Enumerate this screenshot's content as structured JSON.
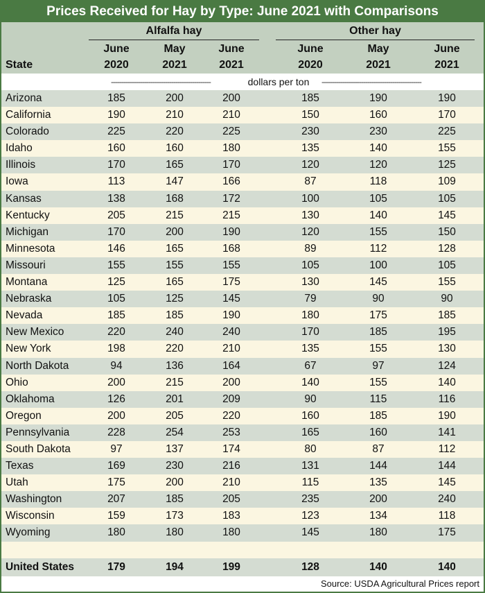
{
  "title": "Prices Received for Hay by Type: June 2021 with Comparisons",
  "groups": {
    "alfalfa": "Alfalfa hay",
    "other": "Other hay"
  },
  "state_header": "State",
  "columns": [
    {
      "top": "June",
      "bottom": "2020"
    },
    {
      "top": "May",
      "bottom": "2021"
    },
    {
      "top": "June",
      "bottom": "2021"
    },
    {
      "top": "June",
      "bottom": "2020"
    },
    {
      "top": "May",
      "bottom": "2021"
    },
    {
      "top": "June",
      "bottom": "2021"
    }
  ],
  "units_dashes_left": "------------------------------------------------",
  "units_label": "dollars per ton",
  "units_dashes_right": "------------------------------------------------",
  "rows": [
    {
      "state": "Arizona",
      "values": [
        "185",
        "200",
        "200",
        "185",
        "190",
        "190"
      ]
    },
    {
      "state": "California",
      "values": [
        "190",
        "210",
        "210",
        "150",
        "160",
        "170"
      ]
    },
    {
      "state": "Colorado",
      "values": [
        "225",
        "220",
        "225",
        "230",
        "230",
        "225"
      ]
    },
    {
      "state": "Idaho",
      "values": [
        "160",
        "160",
        "180",
        "135",
        "140",
        "155"
      ]
    },
    {
      "state": "Illinois",
      "values": [
        "170",
        "165",
        "170",
        "120",
        "120",
        "125"
      ]
    },
    {
      "state": "Iowa",
      "values": [
        "113",
        "147",
        "166",
        "87",
        "118",
        "109"
      ]
    },
    {
      "state": "Kansas",
      "values": [
        "138",
        "168",
        "172",
        "100",
        "105",
        "105"
      ]
    },
    {
      "state": "Kentucky",
      "values": [
        "205",
        "215",
        "215",
        "130",
        "140",
        "145"
      ]
    },
    {
      "state": "Michigan",
      "values": [
        "170",
        "200",
        "190",
        "120",
        "155",
        "150"
      ]
    },
    {
      "state": "Minnesota",
      "values": [
        "146",
        "165",
        "168",
        "89",
        "112",
        "128"
      ]
    },
    {
      "state": "Missouri",
      "values": [
        "155",
        "155",
        "155",
        "105",
        "100",
        "105"
      ]
    },
    {
      "state": "Montana",
      "values": [
        "125",
        "165",
        "175",
        "130",
        "145",
        "155"
      ]
    },
    {
      "state": "Nebraska",
      "values": [
        "105",
        "125",
        "145",
        "79",
        "90",
        "90"
      ]
    },
    {
      "state": "Nevada",
      "values": [
        "185",
        "185",
        "190",
        "180",
        "175",
        "185"
      ]
    },
    {
      "state": "New Mexico",
      "values": [
        "220",
        "240",
        "240",
        "170",
        "185",
        "195"
      ]
    },
    {
      "state": "New York",
      "values": [
        "198",
        "220",
        "210",
        "135",
        "155",
        "130"
      ]
    },
    {
      "state": "North Dakota",
      "values": [
        "94",
        "136",
        "164",
        "67",
        "97",
        "124"
      ]
    },
    {
      "state": "Ohio",
      "values": [
        "200",
        "215",
        "200",
        "140",
        "155",
        "140"
      ]
    },
    {
      "state": "Oklahoma",
      "values": [
        "126",
        "201",
        "209",
        "90",
        "115",
        "116"
      ]
    },
    {
      "state": "Oregon",
      "values": [
        "200",
        "205",
        "220",
        "160",
        "185",
        "190"
      ]
    },
    {
      "state": "Pennsylvania",
      "values": [
        "228",
        "254",
        "253",
        "165",
        "160",
        "141"
      ]
    },
    {
      "state": "South Dakota",
      "values": [
        "97",
        "137",
        "174",
        "80",
        "87",
        "112"
      ]
    },
    {
      "state": "Texas",
      "values": [
        "169",
        "230",
        "216",
        "131",
        "144",
        "144"
      ]
    },
    {
      "state": "Utah",
      "values": [
        "175",
        "200",
        "210",
        "115",
        "135",
        "145"
      ]
    },
    {
      "state": "Washington",
      "values": [
        "207",
        "185",
        "205",
        "235",
        "200",
        "240"
      ]
    },
    {
      "state": "Wisconsin",
      "values": [
        "159",
        "173",
        "183",
        "123",
        "134",
        "118"
      ]
    },
    {
      "state": "Wyoming",
      "values": [
        "180",
        "180",
        "180",
        "145",
        "180",
        "175"
      ]
    }
  ],
  "us_row": {
    "state": "United States",
    "values": [
      "179",
      "194",
      "199",
      "128",
      "140",
      "140"
    ]
  },
  "source": "Source: USDA Agricultural Prices report",
  "colors": {
    "header_band": "#4a7a43",
    "header_bg": "#c3d0c0",
    "row_odd": "#d4dcd2",
    "row_even": "#fbf6e1"
  }
}
